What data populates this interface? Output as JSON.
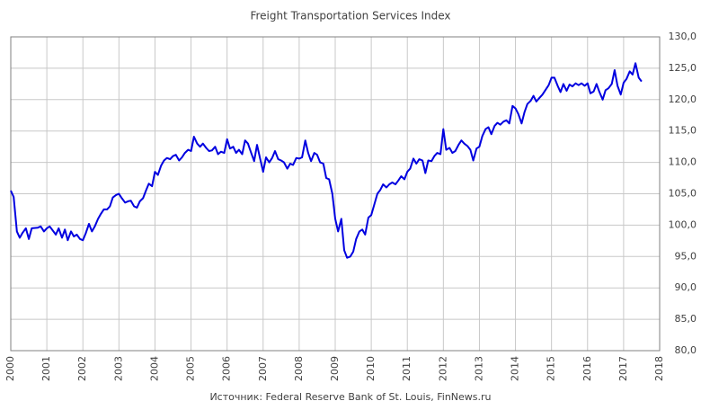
{
  "chart_data": {
    "type": "line",
    "title": "Freight Transportation Services Index",
    "source": "Источник: Federal Reserve Bank of St. Louis, FinNews.ru",
    "x": [
      2000.0,
      2000.08,
      2000.17,
      2000.25,
      2000.33,
      2000.42,
      2000.5,
      2000.58,
      2000.75,
      2000.83,
      2000.92,
      2001.0,
      2001.08,
      2001.25,
      2001.33,
      2001.42,
      2001.5,
      2001.58,
      2001.67,
      2001.75,
      2001.83,
      2001.92,
      2002.0,
      2002.08,
      2002.17,
      2002.25,
      2002.33,
      2002.42,
      2002.5,
      2002.58,
      2002.67,
      2002.75,
      2002.83,
      2002.92,
      2003.0,
      2003.08,
      2003.17,
      2003.25,
      2003.33,
      2003.42,
      2003.5,
      2003.58,
      2003.67,
      2003.75,
      2003.83,
      2003.92,
      2004.0,
      2004.08,
      2004.17,
      2004.25,
      2004.33,
      2004.42,
      2004.5,
      2004.58,
      2004.67,
      2004.75,
      2004.83,
      2004.92,
      2005.0,
      2005.08,
      2005.17,
      2005.25,
      2005.33,
      2005.42,
      2005.5,
      2005.58,
      2005.67,
      2005.75,
      2005.83,
      2005.92,
      2006.0,
      2006.08,
      2006.17,
      2006.25,
      2006.33,
      2006.42,
      2006.5,
      2006.58,
      2006.67,
      2006.75,
      2006.83,
      2006.92,
      2007.0,
      2007.08,
      2007.17,
      2007.25,
      2007.33,
      2007.42,
      2007.5,
      2007.58,
      2007.67,
      2007.75,
      2007.83,
      2007.92,
      2008.0,
      2008.08,
      2008.17,
      2008.25,
      2008.33,
      2008.42,
      2008.5,
      2008.58,
      2008.67,
      2008.75,
      2008.83,
      2008.92,
      2009.0,
      2009.08,
      2009.17,
      2009.25,
      2009.33,
      2009.42,
      2009.5,
      2009.58,
      2009.67,
      2009.75,
      2009.83,
      2009.92,
      2010.0,
      2010.08,
      2010.17,
      2010.25,
      2010.33,
      2010.42,
      2010.5,
      2010.58,
      2010.67,
      2010.75,
      2010.83,
      2010.92,
      2011.0,
      2011.08,
      2011.17,
      2011.25,
      2011.33,
      2011.42,
      2011.5,
      2011.58,
      2011.67,
      2011.75,
      2011.83,
      2011.92,
      2012.0,
      2012.08,
      2012.17,
      2012.25,
      2012.33,
      2012.42,
      2012.5,
      2012.58,
      2012.67,
      2012.75,
      2012.83,
      2012.92,
      2013.0,
      2013.08,
      2013.17,
      2013.25,
      2013.33,
      2013.42,
      2013.5,
      2013.58,
      2013.67,
      2013.75,
      2013.83,
      2013.92,
      2014.0,
      2014.08,
      2014.17,
      2014.25,
      2014.33,
      2014.42,
      2014.5,
      2014.58,
      2014.67,
      2014.75,
      2014.83,
      2014.92,
      2015.0,
      2015.08,
      2015.17,
      2015.25,
      2015.33,
      2015.42,
      2015.5,
      2015.58,
      2015.67,
      2015.75,
      2015.83,
      2015.92,
      2016.0,
      2016.08,
      2016.17,
      2016.25,
      2016.33,
      2016.42,
      2016.5,
      2016.58,
      2016.67,
      2016.75,
      2016.83,
      2016.92,
      2017.0,
      2017.08,
      2017.17,
      2017.25,
      2017.33,
      2017.42,
      2017.5
    ],
    "series": [
      {
        "color": "#0000e0",
        "values": [
          105.5,
          104.5,
          99,
          98,
          98.8,
          99.5,
          97.8,
          99.5,
          99.6,
          99.8,
          99,
          99.5,
          99.8,
          98.5,
          99.5,
          98,
          99.3,
          97.6,
          99,
          98.2,
          98.5,
          97.8,
          97.6,
          98.7,
          100.2,
          99,
          99.8,
          101,
          101.8,
          102.5,
          102.5,
          103,
          104.4,
          104.8,
          105,
          104.3,
          103.6,
          103.8,
          103.9,
          103,
          102.8,
          103.8,
          104.3,
          105.5,
          106.6,
          106.2,
          108.5,
          108,
          109.5,
          110.3,
          110.7,
          110.5,
          111,
          111.2,
          110.3,
          110.8,
          111.5,
          112,
          111.8,
          114.1,
          113,
          112.5,
          113,
          112.3,
          111.8,
          111.9,
          112.5,
          111.3,
          111.7,
          111.5,
          113.7,
          112.2,
          112.5,
          111.5,
          112,
          111.3,
          113.5,
          113,
          111.5,
          110.2,
          112.8,
          110.5,
          108.5,
          110.8,
          110,
          110.7,
          111.8,
          110.5,
          110.3,
          110,
          109,
          109.8,
          109.6,
          110.7,
          110.6,
          110.8,
          113.5,
          111.5,
          110.2,
          111.5,
          111.2,
          110,
          109.8,
          107.5,
          107.3,
          105,
          101,
          99,
          101,
          96,
          94.8,
          95,
          95.8,
          97.8,
          99,
          99.3,
          98.5,
          101.2,
          101.6,
          103.2,
          105,
          105.6,
          106.5,
          106,
          106.5,
          106.8,
          106.5,
          107.1,
          107.8,
          107.3,
          108.5,
          109,
          110.6,
          109.8,
          110.5,
          110.3,
          108.3,
          110.3,
          110.2,
          111,
          111.5,
          111.3,
          115.3,
          112,
          112.3,
          111.5,
          111.8,
          112.8,
          113.5,
          113,
          112.6,
          112,
          110.3,
          112.2,
          112.5,
          114.2,
          115.3,
          115.6,
          114.5,
          115.8,
          116.3,
          116,
          116.5,
          116.7,
          116.2,
          119,
          118.6,
          117.7,
          116.2,
          118,
          119.3,
          119.8,
          120.6,
          119.7,
          120.3,
          120.8,
          121.5,
          122.3,
          123.5,
          123.5,
          122.2,
          121.2,
          122.5,
          121.4,
          122.4,
          122.1,
          122.6,
          122.3,
          122.6,
          122.2,
          122.6,
          121,
          121.3,
          122.5,
          121.2,
          120,
          121.5,
          121.8,
          122.5,
          124.7,
          122.2,
          120.8,
          122.7,
          123.3,
          124.5,
          124,
          125.8,
          123.5,
          122.9
        ]
      }
    ],
    "xlim": [
      2000,
      2018
    ],
    "xticks": [
      2000,
      2001,
      2002,
      2003,
      2004,
      2005,
      2006,
      2007,
      2008,
      2009,
      2010,
      2011,
      2012,
      2013,
      2014,
      2015,
      2016,
      2017,
      2018
    ],
    "ylim": [
      80,
      130
    ],
    "yticks": [
      {
        "value": 80,
        "label": "80,0"
      },
      {
        "value": 85,
        "label": "85,0"
      },
      {
        "value": 90,
        "label": "90,0"
      },
      {
        "value": 95,
        "label": "95,0"
      },
      {
        "value": 100,
        "label": "100,0"
      },
      {
        "value": 105,
        "label": "105,0"
      },
      {
        "value": 110,
        "label": "110,0"
      },
      {
        "value": 115,
        "label": "115,0"
      },
      {
        "value": 120,
        "label": "120,0"
      },
      {
        "value": 125,
        "label": "125,0"
      },
      {
        "value": 130,
        "label": "130,0"
      }
    ],
    "grid": true
  }
}
